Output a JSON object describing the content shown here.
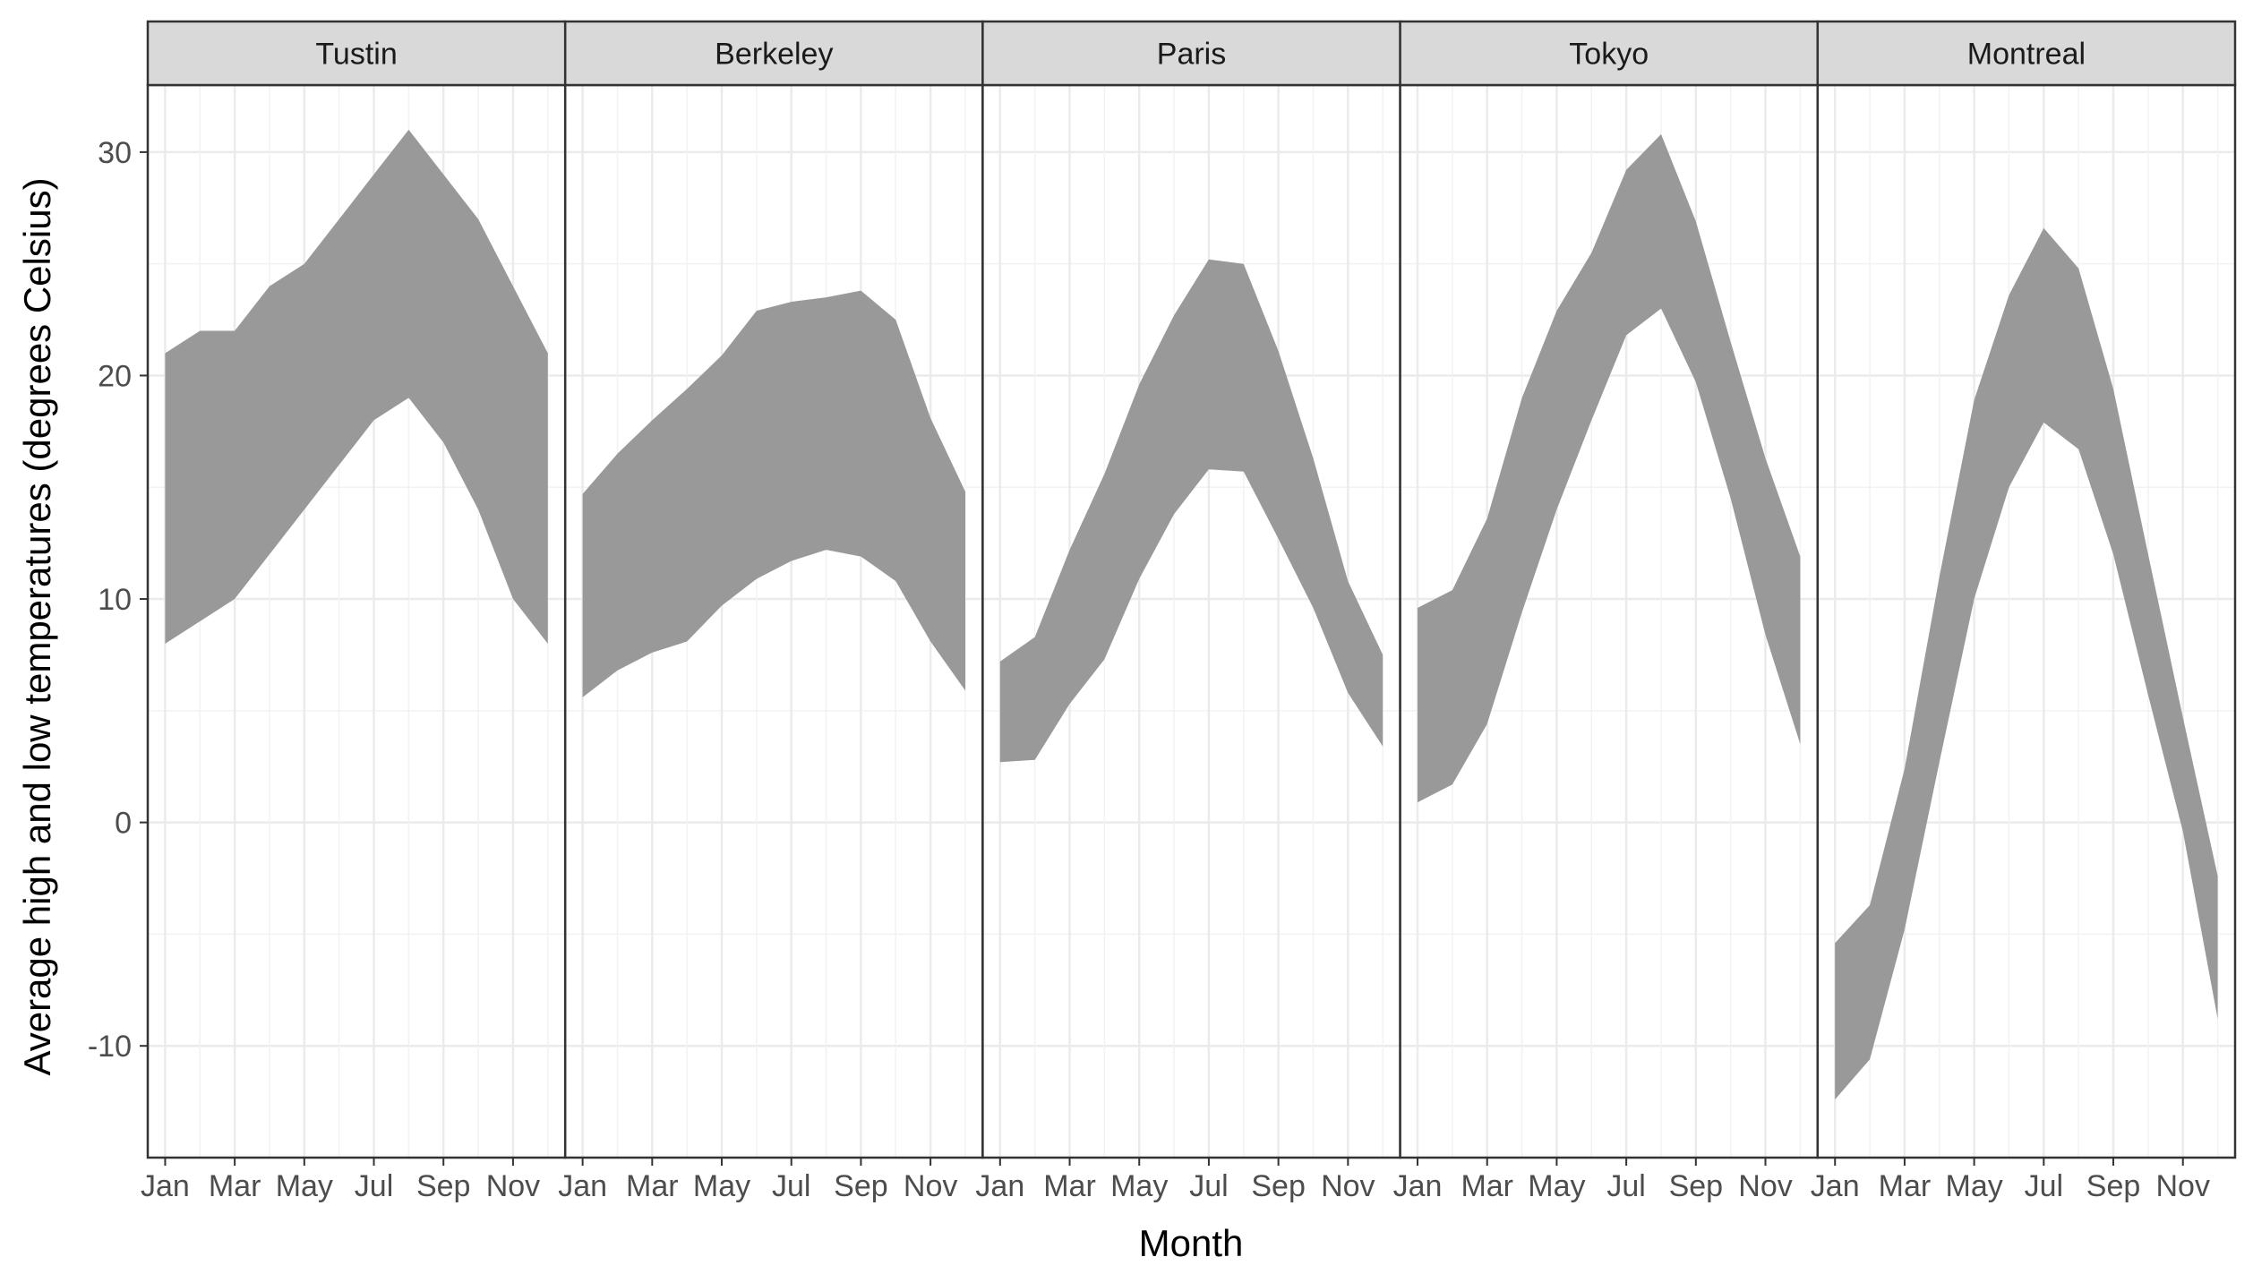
{
  "chart_data": {
    "type": "area",
    "title": "",
    "xlabel": "Month",
    "ylabel": "Average high and low temperatures (degrees Celsius)",
    "ylim": [
      -15,
      33
    ],
    "yticks": [
      30,
      20,
      10,
      0,
      -10
    ],
    "ytick_labels": [
      "30",
      "20",
      "10",
      "0",
      "-10"
    ],
    "month_labels": [
      "Jan",
      "Mar",
      "May",
      "Jul",
      "Sep",
      "Nov"
    ],
    "label_months": [
      1,
      3,
      5,
      7,
      9,
      11
    ],
    "x_range": [
      0.5,
      12.5
    ],
    "grid": true,
    "legend": "none",
    "fill_color": "#999999",
    "strip_fill": "#d9d9d9",
    "panels": [
      {
        "name": "Tustin",
        "months": [
          1,
          2,
          3,
          4,
          5,
          6,
          7,
          8,
          9,
          10,
          11,
          12
        ],
        "high": [
          21,
          22,
          22,
          24,
          25,
          27,
          29,
          31,
          29,
          27,
          24,
          21
        ],
        "low": [
          8,
          9,
          10,
          12,
          14,
          16,
          18,
          19,
          17,
          14,
          10,
          8
        ]
      },
      {
        "name": "Berkeley",
        "months": [
          1,
          2,
          3,
          4,
          5,
          6,
          7,
          8,
          9,
          10,
          11,
          12
        ],
        "high": [
          14.7,
          16.5,
          18.0,
          19.4,
          20.9,
          22.9,
          23.3,
          23.5,
          23.8,
          22.5,
          18.1,
          14.8
        ],
        "low": [
          5.6,
          6.8,
          7.6,
          8.1,
          9.7,
          10.9,
          11.7,
          12.2,
          11.9,
          10.8,
          8.1,
          5.9
        ]
      },
      {
        "name": "Paris",
        "months": [
          1,
          2,
          3,
          4,
          5,
          6,
          7,
          8,
          9,
          10,
          11,
          12
        ],
        "high": [
          7.2,
          8.3,
          12.2,
          15.6,
          19.6,
          22.7,
          25.2,
          25.0,
          21.1,
          16.3,
          10.8,
          7.5
        ],
        "low": [
          2.7,
          2.8,
          5.3,
          7.3,
          10.9,
          13.8,
          15.8,
          15.7,
          12.7,
          9.6,
          5.8,
          3.4
        ]
      },
      {
        "name": "Tokyo",
        "months": [
          1,
          2,
          3,
          4,
          5,
          6,
          7,
          8,
          9,
          10,
          11,
          12
        ],
        "high": [
          9.6,
          10.4,
          13.6,
          19.0,
          22.9,
          25.5,
          29.2,
          30.8,
          26.9,
          21.5,
          16.3,
          11.9
        ],
        "low": [
          0.9,
          1.7,
          4.4,
          9.4,
          14.0,
          18.0,
          21.8,
          23.0,
          19.7,
          14.5,
          8.4,
          3.5
        ]
      },
      {
        "name": "Montreal",
        "months": [
          1,
          2,
          3,
          4,
          5,
          6,
          7,
          8,
          9,
          10,
          11,
          12
        ],
        "high": [
          -5.4,
          -3.7,
          2.4,
          11.0,
          18.9,
          23.6,
          26.6,
          24.8,
          19.4,
          12.0,
          4.7,
          -2.4
        ],
        "low": [
          -12.4,
          -10.6,
          -4.8,
          2.7,
          10.0,
          15.0,
          17.9,
          16.7,
          12.0,
          5.7,
          -0.4,
          -8.8
        ]
      }
    ]
  }
}
